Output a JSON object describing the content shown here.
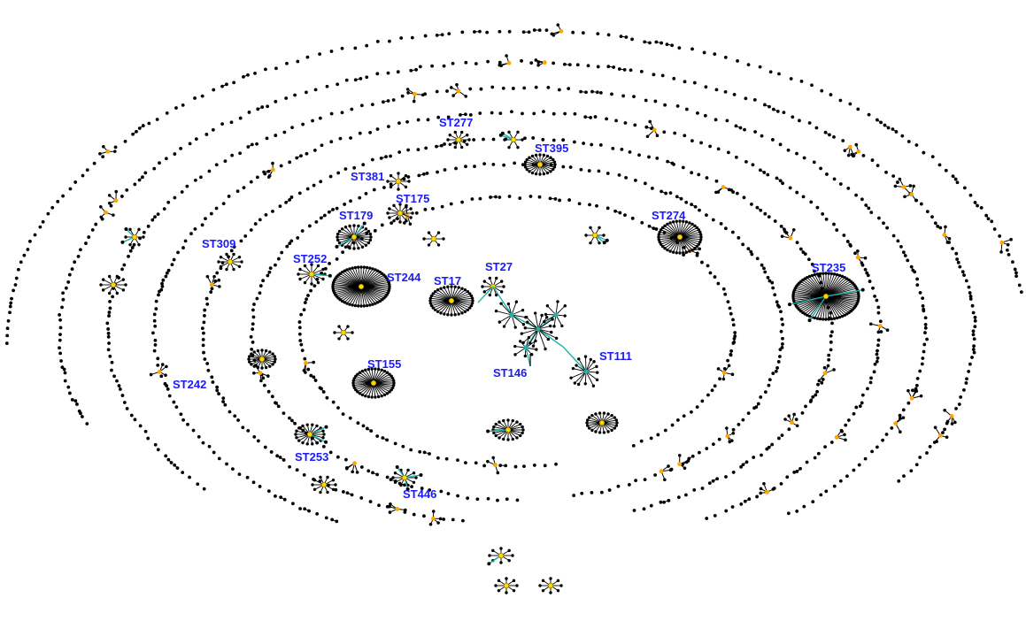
{
  "diagram": {
    "type": "minimum-spanning-tree",
    "layout": "concentric spiral rings of sequence types",
    "colors": {
      "background": "#ffffff",
      "node": "#000000",
      "edge": "#000000",
      "founder": "#ffd700",
      "subgroup_founder": "#ffa500",
      "variant_link": "#20b2aa",
      "label": "#1a1aff"
    },
    "labels": [
      {
        "id": "st277",
        "text": "ST277"
      },
      {
        "id": "st395",
        "text": "ST395"
      },
      {
        "id": "st381",
        "text": "ST381"
      },
      {
        "id": "st175",
        "text": "ST175"
      },
      {
        "id": "st179",
        "text": "ST179"
      },
      {
        "id": "st274",
        "text": "ST274"
      },
      {
        "id": "st309",
        "text": "ST309"
      },
      {
        "id": "st252",
        "text": "ST252"
      },
      {
        "id": "st244",
        "text": "ST244"
      },
      {
        "id": "st17",
        "text": "ST17"
      },
      {
        "id": "st27",
        "text": "ST27"
      },
      {
        "id": "st235",
        "text": "ST235"
      },
      {
        "id": "st146",
        "text": "ST146"
      },
      {
        "id": "st111",
        "text": "ST111"
      },
      {
        "id": "st155",
        "text": "ST155"
      },
      {
        "id": "st242",
        "text": "ST242"
      },
      {
        "id": "st253",
        "text": "ST253"
      },
      {
        "id": "st446",
        "text": "ST446"
      }
    ]
  }
}
